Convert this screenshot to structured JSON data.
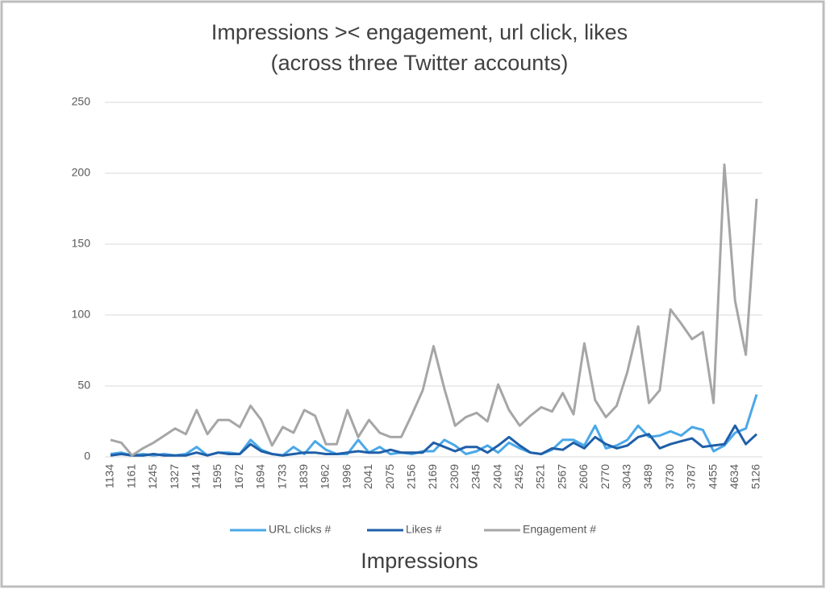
{
  "chart_data": {
    "type": "line",
    "title": "Impressions >< engagement, url click, likes",
    "subtitle": "(across three Twitter accounts)",
    "x_label": "Impressions",
    "categories": [
      "1134",
      null,
      "1161",
      null,
      "1245",
      null,
      "1327",
      null,
      "1414",
      null,
      "1595",
      null,
      "1672",
      null,
      "1694",
      null,
      "1733",
      null,
      "1839",
      null,
      "1962",
      null,
      "1996",
      null,
      "2041",
      null,
      "2075",
      null,
      "2156",
      null,
      "2169",
      null,
      "2309",
      null,
      "2345",
      null,
      "2404",
      null,
      "2452",
      null,
      "2521",
      null,
      "2567",
      null,
      "2606",
      null,
      "2770",
      null,
      "3043",
      null,
      "3489",
      null,
      "3730",
      null,
      "3787",
      null,
      "4455",
      null,
      "4634",
      null,
      "5126"
    ],
    "series": [
      {
        "name": "URL clicks #",
        "color": "#4aa8e8",
        "values": [
          2,
          3,
          1,
          2,
          1,
          2,
          1,
          2,
          7,
          1,
          3,
          3,
          2,
          12,
          5,
          2,
          1,
          7,
          2,
          11,
          5,
          2,
          2,
          12,
          3,
          7,
          2,
          3,
          2,
          4,
          4,
          12,
          8,
          2,
          4,
          8,
          3,
          10,
          6,
          3,
          2,
          5,
          12,
          12,
          8,
          22,
          6,
          8,
          12,
          22,
          14,
          15,
          18,
          15,
          21,
          19,
          4,
          8,
          17,
          20,
          44
        ]
      },
      {
        "name": "Likes #",
        "color": "#1f5fa8",
        "values": [
          1,
          2,
          1,
          1,
          2,
          1,
          1,
          1,
          3,
          1,
          3,
          2,
          2,
          9,
          4,
          2,
          1,
          2,
          3,
          3,
          2,
          2,
          3,
          4,
          3,
          3,
          5,
          3,
          3,
          3,
          10,
          7,
          4,
          7,
          7,
          3,
          8,
          14,
          8,
          3,
          2,
          6,
          5,
          10,
          6,
          14,
          9,
          6,
          8,
          14,
          16,
          6,
          9,
          11,
          13,
          7,
          8,
          9,
          22,
          9,
          16
        ]
      },
      {
        "name": "Engagement #",
        "color": "#a6a6a6",
        "values": [
          12,
          10,
          1,
          6,
          10,
          15,
          20,
          16,
          33,
          16,
          26,
          26,
          21,
          36,
          26,
          8,
          21,
          17,
          33,
          29,
          9,
          9,
          33,
          14,
          26,
          17,
          14,
          14,
          30,
          47,
          78,
          48,
          22,
          28,
          31,
          25,
          51,
          33,
          22,
          29,
          35,
          32,
          45,
          30,
          80,
          40,
          28,
          36,
          60,
          92,
          38,
          47,
          104,
          94,
          83,
          88,
          38,
          206,
          110,
          72,
          182
        ]
      }
    ],
    "ylim": [
      0,
      250
    ],
    "yticks": [
      0,
      50,
      100,
      150,
      200,
      250
    ],
    "grid": true,
    "legend": "bottom"
  }
}
